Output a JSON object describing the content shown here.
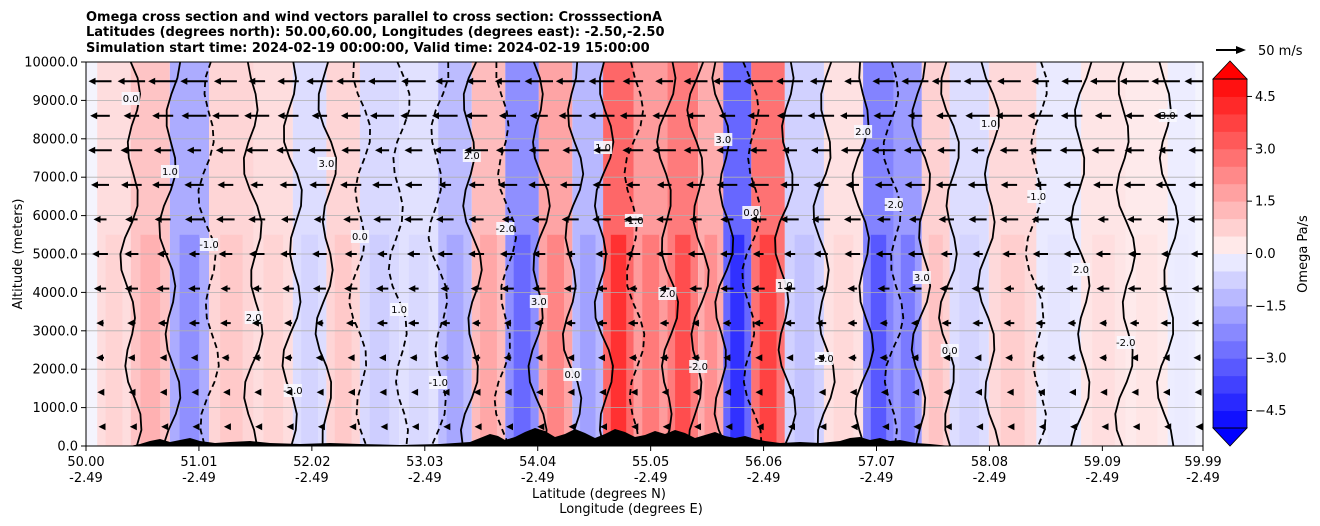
{
  "chart_data": {
    "type": "heatmap",
    "title_lines": [
      "Omega cross section and wind vectors parallel to cross section: CrosssectionA",
      "Latitudes (degrees north): 50.00,60.00, Longitudes (degrees east): -2.50,-2.50",
      "Simulation start time: 2024-02-19 00:00:00, Valid time: 2024-02-19 15:00:00"
    ],
    "ylabel": "Altitude (meters)",
    "xlabel_lat": "Latitude (degrees N)",
    "xlabel_lon": "Longitude (degrees E)",
    "ylim": [
      0,
      10000
    ],
    "y_ticks": [
      "0.0",
      "1000.0",
      "2000.0",
      "3000.0",
      "4000.0",
      "5000.0",
      "6000.0",
      "7000.0",
      "8000.0",
      "9000.0",
      "10000.0"
    ],
    "x_ticks": [
      {
        "lat": "50.00",
        "lon": "-2.49"
      },
      {
        "lat": "51.01",
        "lon": "-2.49"
      },
      {
        "lat": "52.02",
        "lon": "-2.49"
      },
      {
        "lat": "53.03",
        "lon": "-2.49"
      },
      {
        "lat": "54.04",
        "lon": "-2.49"
      },
      {
        "lat": "55.05",
        "lon": "-2.49"
      },
      {
        "lat": "56.06",
        "lon": "-2.49"
      },
      {
        "lat": "57.07",
        "lon": "-2.49"
      },
      {
        "lat": "58.08",
        "lon": "-2.49"
      },
      {
        "lat": "59.09",
        "lon": "-2.49"
      },
      {
        "lat": "59.99",
        "lon": "-2.49"
      }
    ],
    "colorbar": {
      "label": "Omega Pa/s",
      "ticks": [
        "4.5",
        "3.0",
        "1.5",
        "0.0",
        "−1.5",
        "−3.0",
        "−4.5"
      ],
      "range": [
        -5.0,
        5.0
      ],
      "levels": 20
    },
    "vector_key": "50 m/s",
    "contour_labels": [
      "0.0",
      "1.0",
      "-1.0",
      "2.0",
      "-2.0",
      "3.0"
    ],
    "omega_columns": [
      {
        "lat": 50.2,
        "value": 0.6
      },
      {
        "lat": 50.6,
        "value": 1.2
      },
      {
        "lat": 50.9,
        "value": -1.8
      },
      {
        "lat": 51.3,
        "value": 0.8
      },
      {
        "lat": 51.7,
        "value": 0.6
      },
      {
        "lat": 52.0,
        "value": -0.6
      },
      {
        "lat": 52.3,
        "value": 0.8
      },
      {
        "lat": 52.6,
        "value": -0.7
      },
      {
        "lat": 53.0,
        "value": -0.5
      },
      {
        "lat": 53.3,
        "value": -1.4
      },
      {
        "lat": 53.6,
        "value": 1.4
      },
      {
        "lat": 53.9,
        "value": -2.5
      },
      {
        "lat": 54.2,
        "value": 2.0
      },
      {
        "lat": 54.5,
        "value": -1.5
      },
      {
        "lat": 54.75,
        "value": 3.5
      },
      {
        "lat": 55.05,
        "value": 2.2
      },
      {
        "lat": 55.35,
        "value": 3.0
      },
      {
        "lat": 55.6,
        "value": 1.8
      },
      {
        "lat": 55.8,
        "value": -3.5
      },
      {
        "lat": 56.1,
        "value": 3.2
      },
      {
        "lat": 56.4,
        "value": -0.9
      },
      {
        "lat": 56.8,
        "value": 0.5
      },
      {
        "lat": 57.1,
        "value": -2.8
      },
      {
        "lat": 57.35,
        "value": -2.2
      },
      {
        "lat": 57.6,
        "value": 0.9
      },
      {
        "lat": 57.85,
        "value": -0.6
      },
      {
        "lat": 58.3,
        "value": 0.7
      },
      {
        "lat": 58.7,
        "value": -0.3
      },
      {
        "lat": 59.1,
        "value": 0.4
      },
      {
        "lat": 59.5,
        "value": 0.3
      },
      {
        "lat": 59.85,
        "value": -0.2
      }
    ]
  }
}
